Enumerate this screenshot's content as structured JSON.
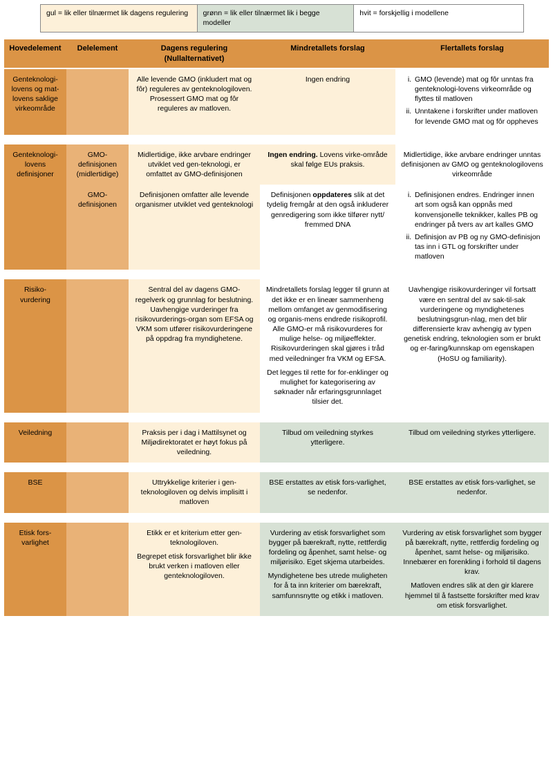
{
  "legend": {
    "yellow": "gul = lik eller tilnærmet lik dagens regulering",
    "green": "grønn = lik eller tilnærmet lik i begge modeller",
    "white": "hvit = forskjellig i modellene"
  },
  "headers": {
    "h1": "Hovedelement",
    "h2": "Delelement",
    "h3a": "Dagens regulering",
    "h3b": "(Nullalternativet)",
    "h4": "Mindretallets forslag",
    "h5": "Flertallets forslag"
  },
  "rows": {
    "r1": {
      "label": "Genteknologi-lovens og mat-lovens saklige virkeområde",
      "c3": "Alle levende GMO (inkludert mat og fôr) reguleres av genteknologiloven. Prosessert GMO mat og fôr reguleres av matloven.",
      "c4": "Ingen endring",
      "c5_li1": "GMO (levende) mat og fôr unntas fra genteknologi-lovens virkeområde og flyttes til matloven",
      "c5_li2": "Unntakene i forskrifter under matloven for levende GMO mat og fôr oppheves"
    },
    "r2a": {
      "label": "Genteknologi-lovens definisjoner",
      "sub": "GMO-definisjonen (midlertidige)",
      "c3": "Midlertidige, ikke arvbare endringer utviklet ved gen-teknologi, er omfattet av GMO-definisjonen",
      "c4a": "Ingen endring. ",
      "c4b": "Lovens virke-område skal følge EUs praksis.",
      "c5": "Midlertidige, ikke arvbare endringer unntas definisjonen av GMO og genteknologilovens virkeområde"
    },
    "r2b": {
      "sub": "GMO-definisjonen",
      "c3": "Definisjonen omfatter alle levende organismer utviklet ved genteknologi",
      "c4a": "Definisjonen ",
      "c4b": "oppdateres ",
      "c4c": "slik at det tydelig fremgår at den også inkluderer genredigering som ikke tilfører nytt/ fremmed DNA",
      "c5_li1": "Definisjonen endres. Endringer innen art som også kan oppnås med konvensjonelle teknikker, kalles PB og endringer på tvers av art kalles GMO",
      "c5_li2": "Definisjon av PB og ny GMO-definisjon tas inn i GTL og forskrifter under matloven"
    },
    "r3": {
      "label": "Risiko-vurdering",
      "c3": "Sentral del av dagens GMO-regelverk og grunnlag for beslutning. Uavhengige vurderinger fra risikovurderings-organ som EFSA og VKM som utfører risikovurderingene på oppdrag fra myndighetene.",
      "c4p1": "Mindretallets forslag legger til grunn at det ikke er en lineær sammenheng mellom omfanget av genmodifisering og organis-mens endrede risikoprofil. Alle GMO-er må risikovurderes for mulige helse- og miljøeffekter. Risikovurderingen skal gjøres i tråd med veiledninger fra VKM og EFSA.",
      "c4p2": "Det legges til rette for for-enklinger og mulighet for kategorisering av søknader når erfaringsgrunnlaget tilsier det.",
      "c5": "Uavhengige risikovurderinger vil fortsatt være en sentral del av sak-til-sak vurderingene og myndighetenes beslutningsgrun-nlag, men det blir differensierte krav avhengig av typen genetisk endring, teknologien som er brukt og er-faring/kunnskap om egenskapen (HoSU og familiarity)."
    },
    "r4": {
      "label": "Veiledning",
      "c3": "Praksis per i dag i Mattilsynet og Miljødirektoratet er høyt fokus på veiledning.",
      "c4": "Tilbud om veiledning styrkes ytterligere.",
      "c5": "Tilbud om veiledning styrkes ytterligere."
    },
    "r5": {
      "label": "BSE",
      "c3": "Uttrykkelige kriterier i gen-teknologiloven og delvis implisitt i matloven",
      "c4": "BSE erstattes av etisk fors-varlighet, se nedenfor.",
      "c5": "BSE erstattes av etisk fors-varlighet, se nedenfor."
    },
    "r6": {
      "label": "Etisk fors-varlighet",
      "c3p1": "Etikk er et kriterium etter gen-teknologiloven.",
      "c3p2": "Begrepet etisk forsvarlighet blir ikke brukt verken i matloven eller genteknologiloven.",
      "c4p1": "Vurdering av etisk forsvarlighet som bygger på bærekraft, nytte, rettferdig fordeling og åpenhet, samt helse- og miljørisiko. Eget skjema utarbeides.",
      "c4p2": "Myndighetene bes utrede muligheten for å ta inn kriterier om bærekraft, samfunnsnytte og etikk i matloven.",
      "c5p1": "Vurdering av etisk forsvarlighet som bygger på bærekraft, nytte, rettferdig fordeling og åpenhet, samt helse- og miljørisiko. Innebærer en forenkling i forhold til dagens krav.",
      "c5p2": "Matloven endres slik at den gir klarere hjemmel til å fastsette forskrifter med krav om etisk forsvarlighet."
    }
  }
}
